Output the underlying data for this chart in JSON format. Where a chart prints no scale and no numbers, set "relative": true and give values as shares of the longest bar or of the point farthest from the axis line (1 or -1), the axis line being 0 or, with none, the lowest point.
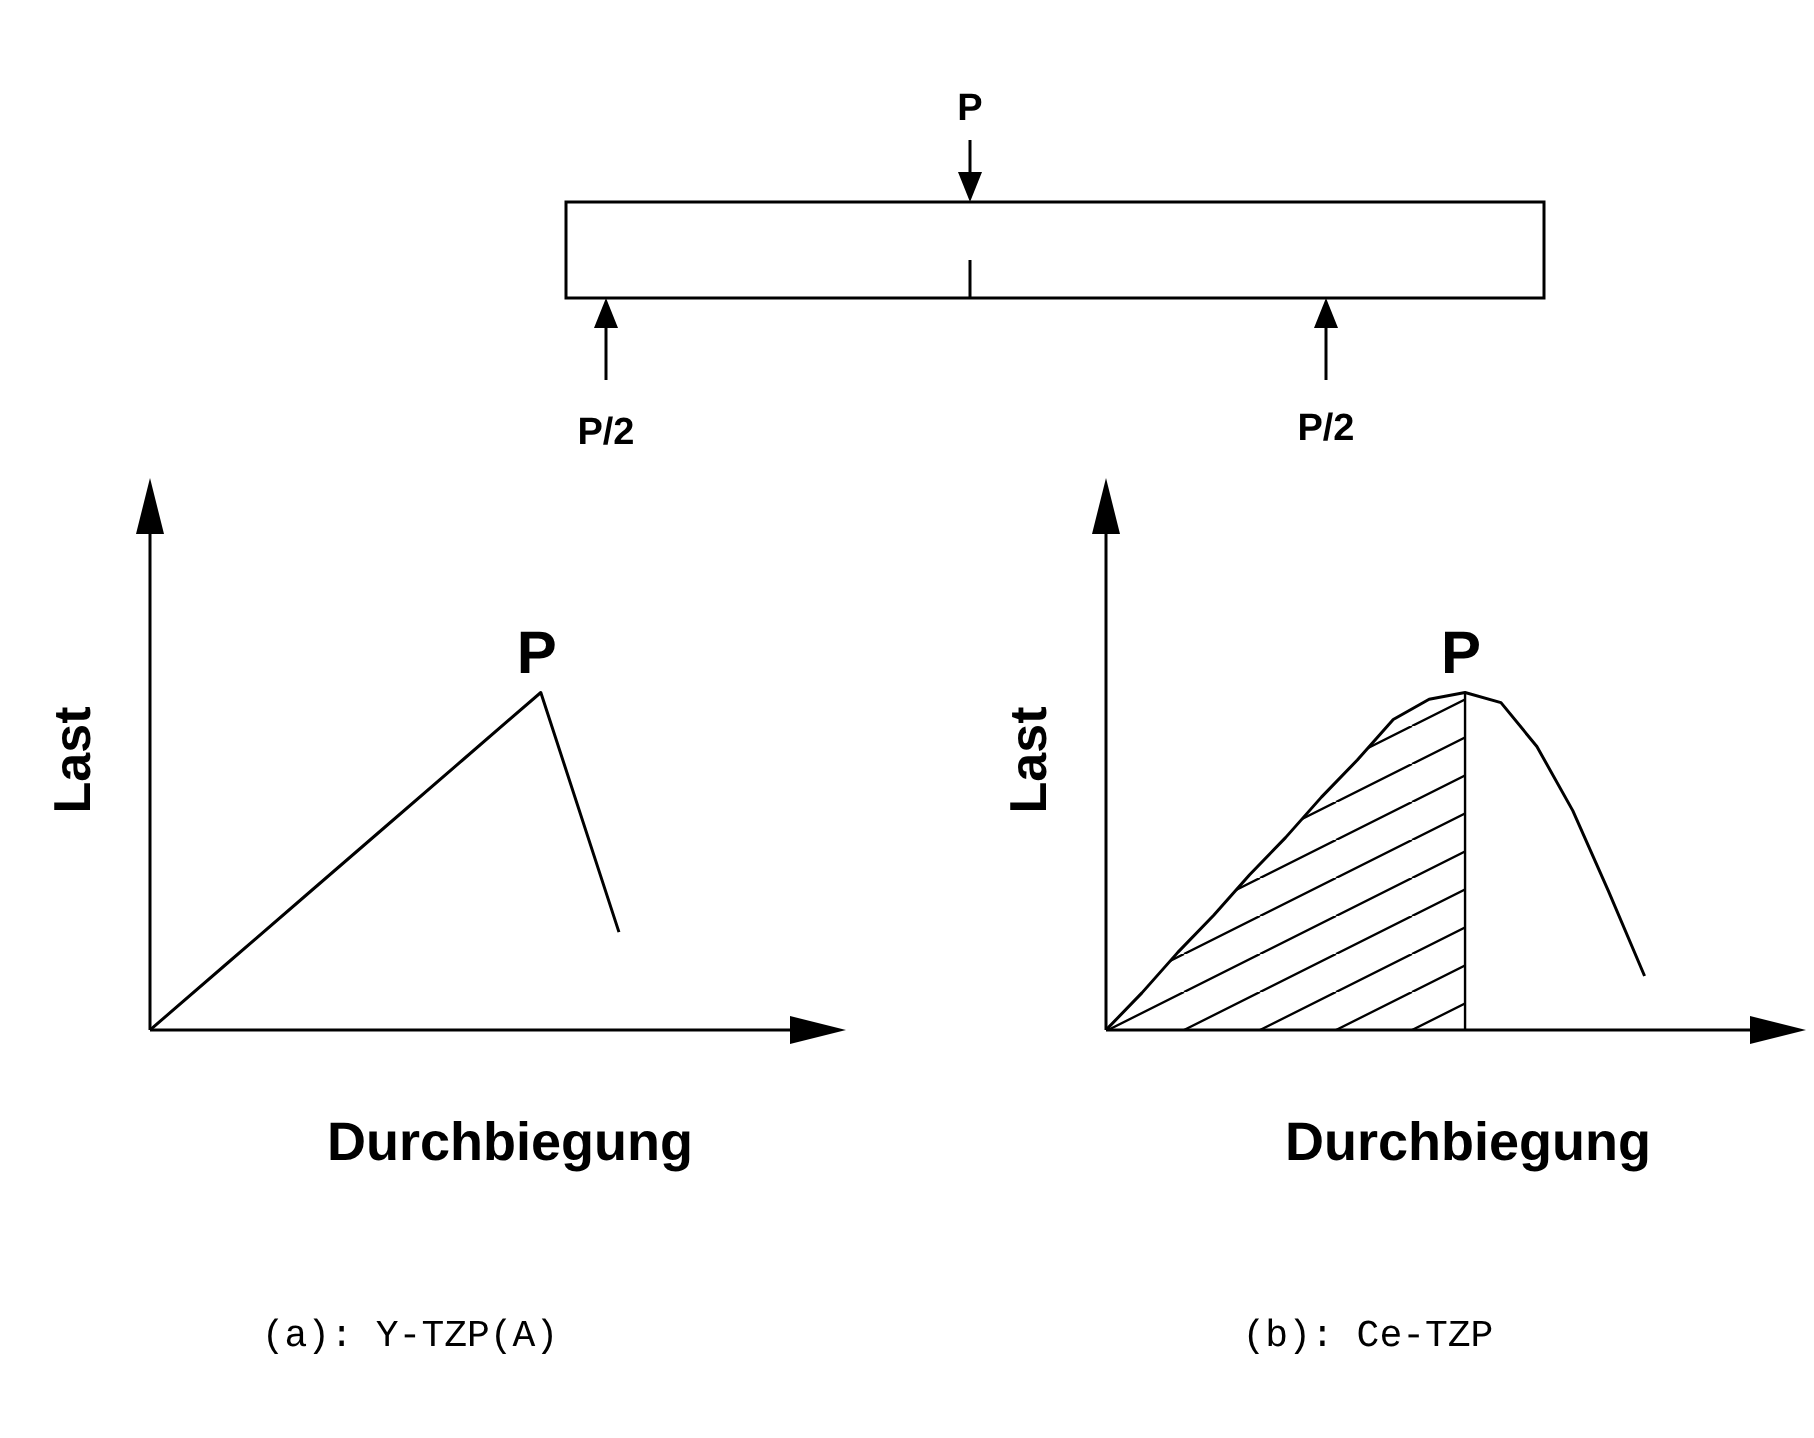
{
  "chart_data": [
    {
      "type": "other",
      "annotations": [
        "P",
        "P/2",
        "P/2"
      ]
    },
    {
      "type": "line",
      "relative": true,
      "title": "(a): Y-TZP(A)",
      "xlabel": "Durchbiegung",
      "ylabel": "Last",
      "categories": [
        null,
        null,
        null,
        null,
        null,
        null,
        null
      ],
      "series": [
        {
          "color": "#000000",
          "values": [
            0,
            0.2,
            0.4,
            0.6,
            0.8,
            1,
            0.29
          ]
        }
      ],
      "annotations": [
        {
          "text": "P",
          "y": 1
        }
      ]
    },
    {
      "type": "line",
      "relative": true,
      "title": "(b): Ce-TZP",
      "xlabel": "Durchbiegung",
      "ylabel": "Last",
      "categories": [
        null,
        null,
        null,
        null,
        null,
        null,
        null,
        null,
        null,
        null,
        null,
        null,
        null,
        null,
        null,
        null
      ],
      "series": [
        {
          "color": "#000000",
          "values": [
            0,
            0.11,
            0.23,
            0.34,
            0.46,
            0.57,
            0.69,
            0.8,
            0.92,
            0.98,
            1,
            0.97,
            0.84,
            0.65,
            0.41,
            0.16
          ]
        },
        {
          "type": "area",
          "color": "#000000",
          "values": [
            0,
            0.11,
            0.23,
            0.34,
            0.46,
            0.57,
            0.69,
            0.8,
            0.92,
            0.98,
            1,
            null,
            null,
            null,
            null,
            null
          ]
        }
      ],
      "annotations": [
        {
          "text": "P",
          "y": 1
        }
      ]
    }
  ]
}
